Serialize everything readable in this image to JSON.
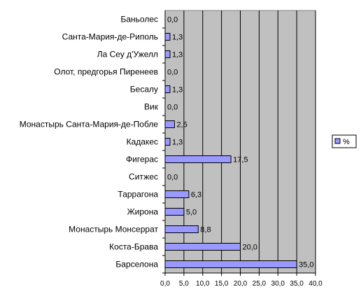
{
  "chart_data": {
    "type": "bar",
    "orientation": "horizontal",
    "categories": [
      "Баньолес",
      "Санта-Мария-де-Риполь",
      "Ла Сеу д'Ужелл",
      "Олот, предгорья Пиренеев",
      "Бесалу",
      "Вик",
      "Монастырь Санта-Мария-де-Побле",
      "Кадакес",
      "Фигерас",
      "Ситжес",
      "Таррагона",
      "Жирона",
      "Монастырь Монсеррат",
      "Коста-Брава",
      "Барселона"
    ],
    "series": [
      {
        "name": "%",
        "values": [
          0.0,
          1.3,
          1.3,
          0.0,
          1.3,
          0.0,
          2.5,
          1.3,
          17.5,
          0.0,
          6.3,
          5.0,
          8.8,
          20.0,
          35.0
        ],
        "value_labels": [
          "0,0",
          "1,3",
          "1,3",
          "0,0",
          "1,3",
          "0,0",
          "2,5",
          "1,3",
          "17,5",
          "0,0",
          "6,3",
          "5,0",
          "8,8",
          "20,0",
          "35,0"
        ]
      }
    ],
    "xlim": [
      0,
      40
    ],
    "x_ticks": [
      "0,0",
      "5,0",
      "10,0",
      "15,0",
      "20,0",
      "25,0",
      "30,0",
      "35,0",
      "40,0"
    ],
    "grid": "vertical",
    "legend_position": "right",
    "colors": {
      "plot_background": "#c0c0c0",
      "bar_fill": "#9999ff",
      "bar_stroke": "#000000",
      "gridline": "#000000"
    }
  }
}
